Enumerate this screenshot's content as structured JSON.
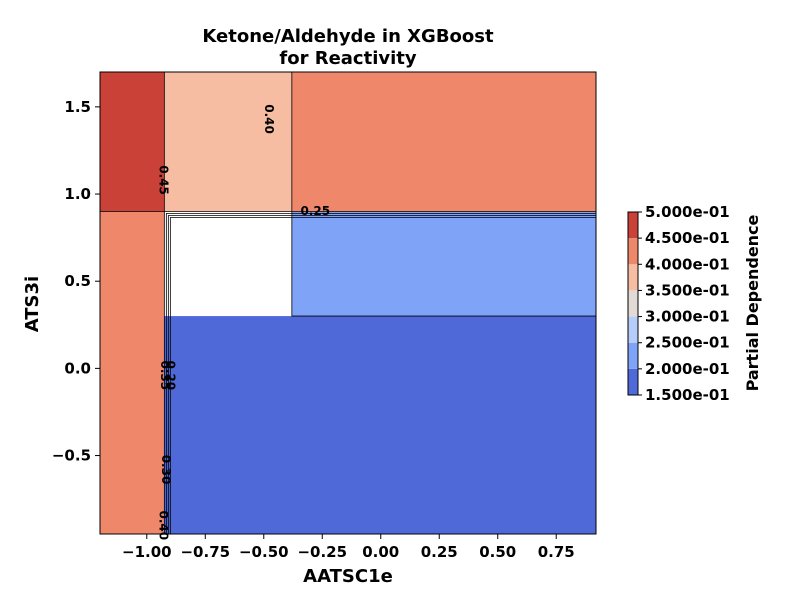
{
  "chart_data": {
    "type": "contour",
    "title_line1": "Ketone/Aldehyde in XGBoost",
    "title_line2": "for Reactivity",
    "xlabel": "AATSC1e",
    "ylabel": "ATS3i",
    "xlim": [
      -1.2,
      0.92
    ],
    "ylim": [
      -0.95,
      1.7
    ],
    "xticks": [
      {
        "value": -1.0,
        "label": "−1.00"
      },
      {
        "value": -0.75,
        "label": "−0.75"
      },
      {
        "value": -0.5,
        "label": "−0.50"
      },
      {
        "value": -0.25,
        "label": "−0.25"
      },
      {
        "value": 0.0,
        "label": "0.00"
      },
      {
        "value": 0.25,
        "label": "0.25"
      },
      {
        "value": 0.5,
        "label": "0.50"
      },
      {
        "value": 0.75,
        "label": "0.75"
      }
    ],
    "yticks": [
      {
        "value": -0.5,
        "label": "−0.5"
      },
      {
        "value": 0.0,
        "label": "0.0"
      },
      {
        "value": 0.5,
        "label": "0.5"
      },
      {
        "value": 1.0,
        "label": "1.0"
      },
      {
        "value": 1.5,
        "label": "1.5"
      }
    ],
    "levels": [
      0.15,
      0.2,
      0.25,
      0.3,
      0.35,
      0.4,
      0.45,
      0.5
    ],
    "level_colors": [
      "#4f69d9",
      "#7fa3f7",
      "#b5cdfa",
      "#e2dad5",
      "#f6bda2",
      "#ef886b",
      "#ca4137"
    ],
    "regions": [
      {
        "name": "top-left",
        "x": [
          -1.2,
          -0.925
        ],
        "y": [
          0.9,
          1.7
        ],
        "value": 0.47
      },
      {
        "name": "top-middle",
        "x": [
          -0.925,
          -0.38
        ],
        "y": [
          0.9,
          1.7
        ],
        "value": 0.38
      },
      {
        "name": "top-right",
        "x": [
          -0.38,
          0.92
        ],
        "y": [
          0.9,
          1.7
        ],
        "value": 0.42
      },
      {
        "name": "left-strip",
        "x": [
          -1.2,
          -0.925
        ],
        "y": [
          -0.95,
          0.9
        ],
        "value": 0.42
      },
      {
        "name": "middle-right",
        "x": [
          -0.38,
          0.92
        ],
        "y": [
          0.3,
          0.9
        ],
        "value": 0.22
      },
      {
        "name": "bottom-main",
        "x": [
          -0.925,
          0.92
        ],
        "y": [
          -0.95,
          0.3
        ],
        "value": 0.17
      }
    ],
    "contour_labels": [
      {
        "text": "0.40",
        "x": -0.48,
        "y": 1.43,
        "rotate": 90
      },
      {
        "text": "0.45",
        "x": -0.93,
        "y": 1.08,
        "rotate": 90
      },
      {
        "text": "0.25",
        "x": -0.28,
        "y": 0.9,
        "rotate": 0
      },
      {
        "text": "0.20",
        "x": -0.9,
        "y": -0.04,
        "rotate": 90
      },
      {
        "text": "0.35",
        "x": -0.925,
        "y": -0.04,
        "rotate": 90
      },
      {
        "text": "0.30",
        "x": -0.92,
        "y": -0.58,
        "rotate": 90
      },
      {
        "text": "0.40",
        "x": -0.93,
        "y": -0.9,
        "rotate": 90
      }
    ],
    "colorbar": {
      "label": "Partial Dependence",
      "ticks": [
        "1.500e-01",
        "2.000e-01",
        "2.500e-01",
        "3.000e-01",
        "3.500e-01",
        "4.000e-01",
        "4.500e-01",
        "5.000e-01"
      ]
    }
  }
}
